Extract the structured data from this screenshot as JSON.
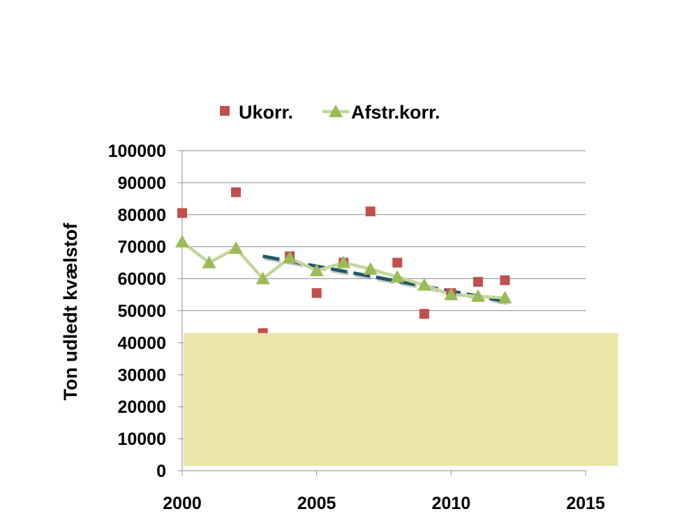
{
  "chart_data": {
    "type": "scatter",
    "ylabel": "Ton udledt kvælstof",
    "xlim": [
      2000,
      2015
    ],
    "ylim": [
      0,
      100000
    ],
    "x_ticks": [
      2000,
      2005,
      2010,
      2015
    ],
    "y_ticks": [
      0,
      10000,
      20000,
      30000,
      40000,
      50000,
      60000,
      70000,
      80000,
      90000,
      100000
    ],
    "grid": "horizontal",
    "legend_position": "top",
    "series": [
      {
        "name": "Ukorr.",
        "marker": "square",
        "color": "#c0504d",
        "x": [
          2000,
          2002,
          2003,
          2004,
          2005,
          2006,
          2007,
          2008,
          2009,
          2010,
          2011,
          2012
        ],
        "y": [
          80500,
          87000,
          43000,
          67000,
          55500,
          65000,
          81000,
          65000,
          49000,
          55500,
          59000,
          59500
        ]
      },
      {
        "name": "Afstr.korr.",
        "marker": "triangle",
        "color": "#9bbb59",
        "line_color": "#c3d69b",
        "x": [
          2000,
          2001,
          2002,
          2003,
          2004,
          2005,
          2006,
          2007,
          2008,
          2009,
          2010,
          2011,
          2012
        ],
        "y": [
          71500,
          65000,
          69500,
          60000,
          66500,
          62500,
          65000,
          63000,
          60500,
          58000,
          55000,
          54500,
          54000
        ]
      }
    ],
    "trendline": {
      "style": "dashed",
      "color": "#215968",
      "x": [
        2003,
        2012.1
      ],
      "y": [
        67000,
        52800
      ]
    },
    "overlay_box": {
      "color": "#ebe6a8",
      "x_from": 2000,
      "x_to": 2016.2,
      "y_from": 1500,
      "y_to": 43000
    }
  }
}
